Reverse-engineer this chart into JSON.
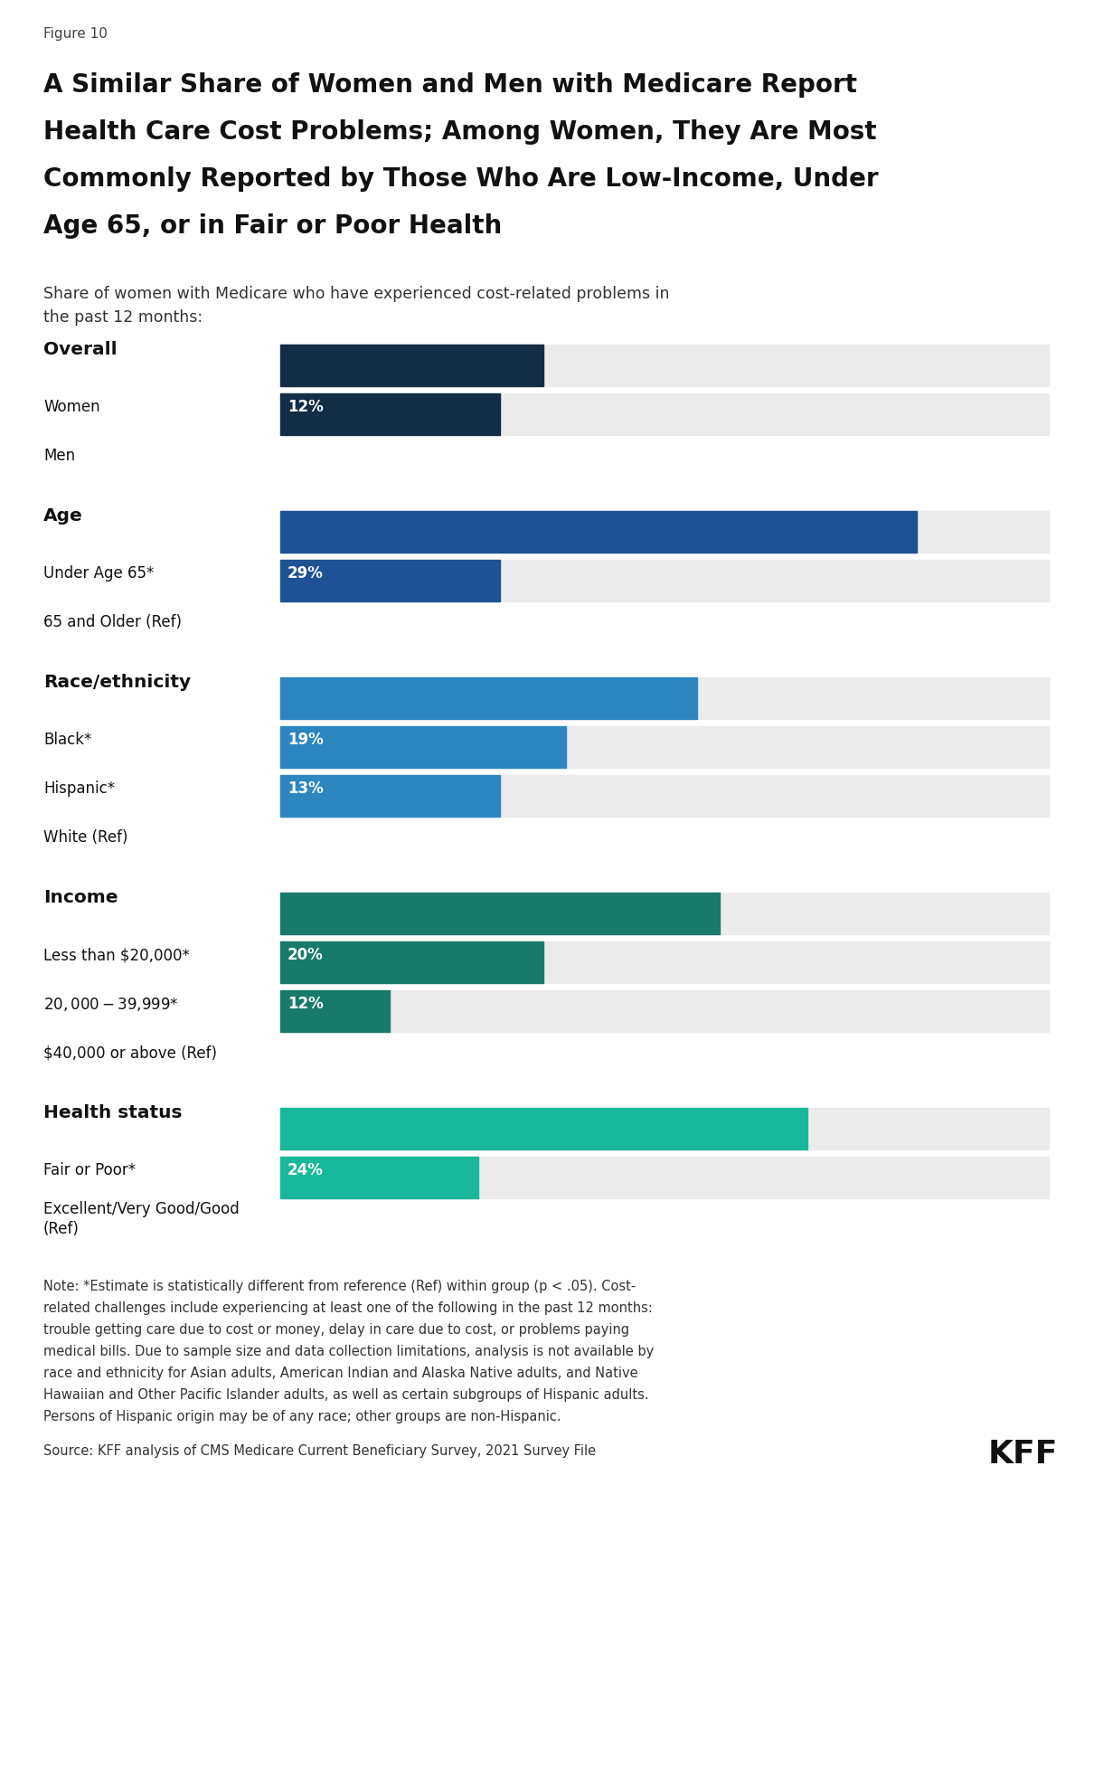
{
  "figure_label": "Figure 10",
  "title_line1": "A Similar Share of Women and Men with Medicare Report",
  "title_line2": "Health Care Cost Problems; Among Women, They Are Most",
  "title_line3": "Commonly Reported by Those Who Are Low-Income, Under",
  "title_line4": "Age 65, or in Fair or Poor Health",
  "subtitle_line1": "Share of women with Medicare who have experienced cost-related problems in",
  "subtitle_line2": "the past 12 months:",
  "categories": [
    "Women",
    "Men",
    "Under Age 65*",
    "65 and Older (Ref)",
    "Black*",
    "Hispanic*",
    "White (Ref)",
    "Less than $20,000*",
    "$20,000-$39,999*",
    "$40,000 or above (Ref)",
    "Fair or Poor*",
    "Excellent/Very Good/Good\n(Ref)"
  ],
  "values": [
    12,
    10,
    29,
    10,
    19,
    13,
    10,
    20,
    12,
    5,
    24,
    9
  ],
  "colors": [
    "#142d47",
    "#142d47",
    "#1f5294",
    "#1f5294",
    "#2e86c1",
    "#2e86c1",
    "#2e86c1",
    "#1a7a6a",
    "#1a7a6a",
    "#1a7a6a",
    "#1ab89a",
    "#1ab89a"
  ],
  "group_headers": [
    "Overall",
    "Age",
    "Race/ethnicity",
    "Income",
    "Health status"
  ],
  "group_sizes": [
    2,
    2,
    3,
    3,
    2
  ],
  "bar_max": 35,
  "bg_color": "#ebebeb",
  "note_line1": "Note: *Estimate is statistically different from reference (Ref) within group (p < .05). Cost-",
  "note_line2": "related challenges include experiencing at least one of the following in the past 12 months:",
  "note_line3": "trouble getting care due to cost or money, delay in care due to cost, or problems paying",
  "note_line4": "medical bills. Due to sample size and data collection limitations, analysis is not available by",
  "note_line5": "race and ethnicity for Asian adults, American Indian and Alaska Native adults, and Native",
  "note_line6": "Hawaiian and Other Pacific Islander adults, as well as certain subgroups of Hispanic adults.",
  "note_line7": "Persons of Hispanic origin may be of any race; other groups are non-Hispanic.",
  "source": "Source: KFF analysis of CMS Medicare Current Beneficiary Survey, 2021 Survey File"
}
